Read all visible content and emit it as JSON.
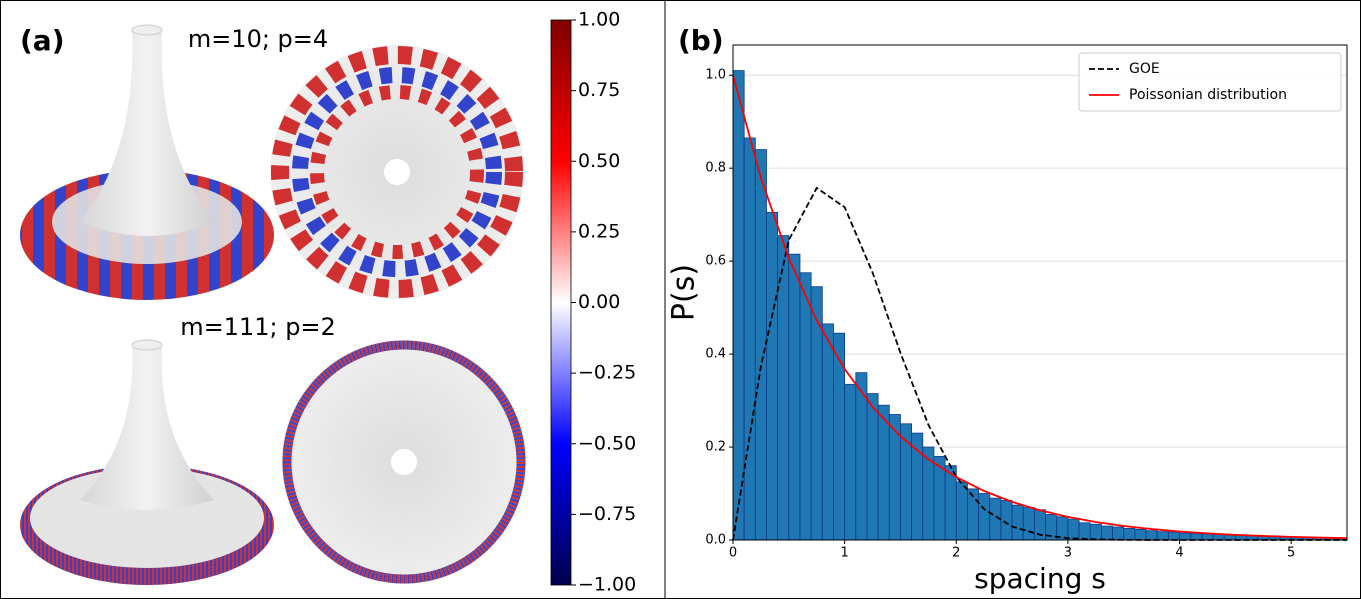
{
  "chart_data": [
    {
      "type": "colorbar",
      "label": "(a)",
      "annotations": [
        "m=10; p=4",
        "m=111; p=2"
      ],
      "colors": [
        "#00004c",
        "#0000ff",
        "#ffffff",
        "#ff0000",
        "#7f0000"
      ],
      "ylim": [
        -1,
        1
      ],
      "yticks": [
        {
          "value": 1,
          "label": "1.00"
        },
        {
          "value": 0.75,
          "label": "0.75"
        },
        {
          "value": 0.5,
          "label": "0.50"
        },
        {
          "value": 0.25,
          "label": "0.25"
        },
        {
          "value": 0,
          "label": "0.00"
        },
        {
          "value": -0.25,
          "label": "−0.25"
        },
        {
          "value": -0.5,
          "label": "−0.50"
        },
        {
          "value": -0.75,
          "label": "−0.75"
        },
        {
          "value": -1,
          "label": "−1.00"
        }
      ]
    },
    {
      "type": "histogram",
      "label": "(b)",
      "xlabel": "spacing s",
      "ylabel": "P(s)",
      "color": "#1f77b4",
      "edgecolor": "#0d3a8c",
      "bins": [
        0,
        0.1,
        0.2,
        0.3,
        0.4,
        0.5,
        0.6,
        0.7,
        0.8,
        0.9,
        1,
        1.1,
        1.2,
        1.3,
        1.4,
        1.5,
        1.6,
        1.7,
        1.8,
        1.9,
        2,
        2.1,
        2.2,
        2.3,
        2.4,
        2.5,
        2.6,
        2.7,
        2.8,
        2.9,
        3,
        3.1,
        3.2,
        3.3,
        3.4,
        3.5,
        3.6,
        3.7,
        3.8,
        3.9,
        4,
        4.1,
        4.2,
        4.3,
        4.4,
        4.5,
        4.6,
        4.7,
        4.8,
        4.9,
        5,
        5.1,
        5.2,
        5.3,
        5.4,
        5.5
      ],
      "values": [
        1.01,
        0.865,
        0.84,
        0.705,
        0.655,
        0.615,
        0.575,
        0.545,
        0.465,
        0.445,
        0.335,
        0.36,
        0.315,
        0.29,
        0.27,
        0.25,
        0.23,
        0.2,
        0.18,
        0.16,
        0.125,
        0.11,
        0.1,
        0.09,
        0.085,
        0.075,
        0.07,
        0.065,
        0.055,
        0.05,
        0.045,
        0.037,
        0.034,
        0.03,
        0.028,
        0.025,
        0.023,
        0.02,
        0.018,
        0.017,
        0.015,
        0.014,
        0.013,
        0.012,
        0.011,
        0.01,
        0.009,
        0.008,
        0.008,
        0.007,
        0.006,
        0.006,
        0.005,
        0.005,
        0.004
      ],
      "lines": [
        {
          "name": "GOE",
          "color": "#000000",
          "dashed": true,
          "x": [
            0,
            0.25,
            0.5,
            0.75,
            1,
            1.25,
            1.5,
            1.75,
            2,
            2.25,
            2.5,
            2.75,
            3,
            3.25,
            3.5,
            3.75,
            4,
            4.5,
            5,
            5.5
          ],
          "values": [
            0,
            0.3739,
            0.6454,
            0.7574,
            0.7161,
            0.5755,
            0.4025,
            0.248,
            0.1357,
            0.0663,
            0.029,
            0.0114,
            0.004,
            0.0013,
            0.0003,
            0.0001,
            0,
            0,
            0,
            0
          ]
        },
        {
          "name": "Poissonian distribution",
          "color": "#ff0000",
          "dashed": false,
          "x": [
            0,
            0.25,
            0.5,
            0.75,
            1,
            1.25,
            1.5,
            1.75,
            2,
            2.25,
            2.5,
            2.75,
            3,
            3.25,
            3.5,
            3.75,
            4,
            4.25,
            4.5,
            4.75,
            5,
            5.25,
            5.5
          ],
          "values": [
            1,
            0.7788,
            0.6065,
            0.4724,
            0.3679,
            0.2865,
            0.2231,
            0.1738,
            0.1353,
            0.1054,
            0.0821,
            0.0639,
            0.0498,
            0.0388,
            0.0302,
            0.0235,
            0.0183,
            0.0143,
            0.0111,
            0.0087,
            0.0067,
            0.0052,
            0.0041
          ]
        }
      ],
      "xlim": [
        0,
        5.5
      ],
      "xticks": [
        0,
        1,
        2,
        3,
        4,
        5
      ],
      "ylim": [
        0,
        1.065
      ],
      "yticks": [
        {
          "value": 0,
          "label": "0.0"
        },
        {
          "value": 0.2,
          "label": "0.2"
        },
        {
          "value": 0.4,
          "label": "0.4"
        },
        {
          "value": 0.6,
          "label": "0.6"
        },
        {
          "value": 0.8,
          "label": "0.8"
        },
        {
          "value": 1,
          "label": "1.0"
        }
      ],
      "grid": true,
      "legend": "upper right"
    }
  ]
}
